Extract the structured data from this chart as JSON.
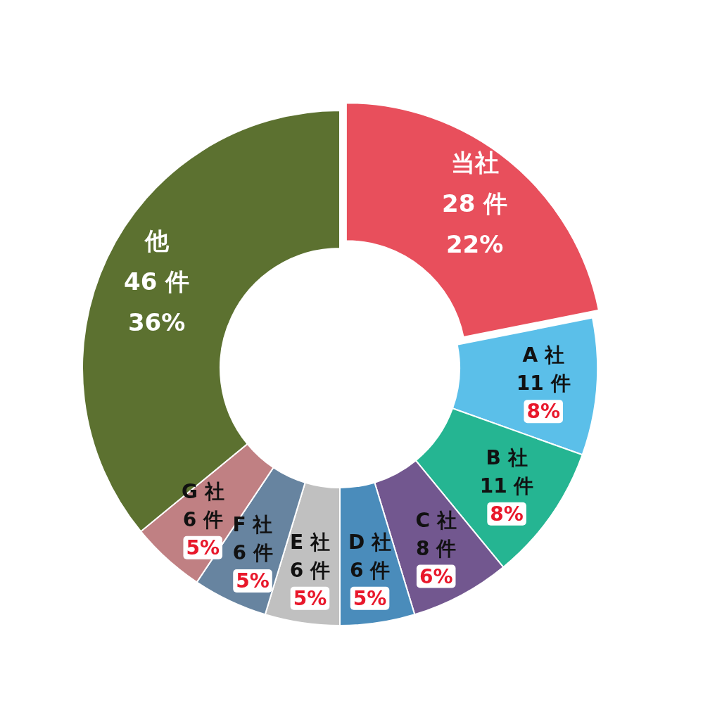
{
  "chart_data": {
    "type": "donut",
    "categories": [
      "当社",
      "A 社",
      "B 社",
      "C 社",
      "D 社",
      "E 社",
      "F 社",
      "G 社",
      "他"
    ],
    "values": [
      28,
      11,
      11,
      8,
      6,
      6,
      6,
      6,
      46
    ],
    "colors": [
      "#e84f5c",
      "#5bbfe9",
      "#25b592",
      "#72578f",
      "#4a8cbb",
      "#c0c0c0",
      "#6784a0",
      "#c08083",
      "#5c7130"
    ],
    "value_labels": [
      "28 件",
      "11 件",
      "11 件",
      "8 件",
      "6 件",
      "6 件",
      "6 件",
      "6 件",
      "46 件"
    ],
    "annotations": [
      "22%",
      "8%",
      "8%",
      "6%",
      "5%",
      "5%",
      "5%",
      "5%",
      "36%"
    ]
  }
}
